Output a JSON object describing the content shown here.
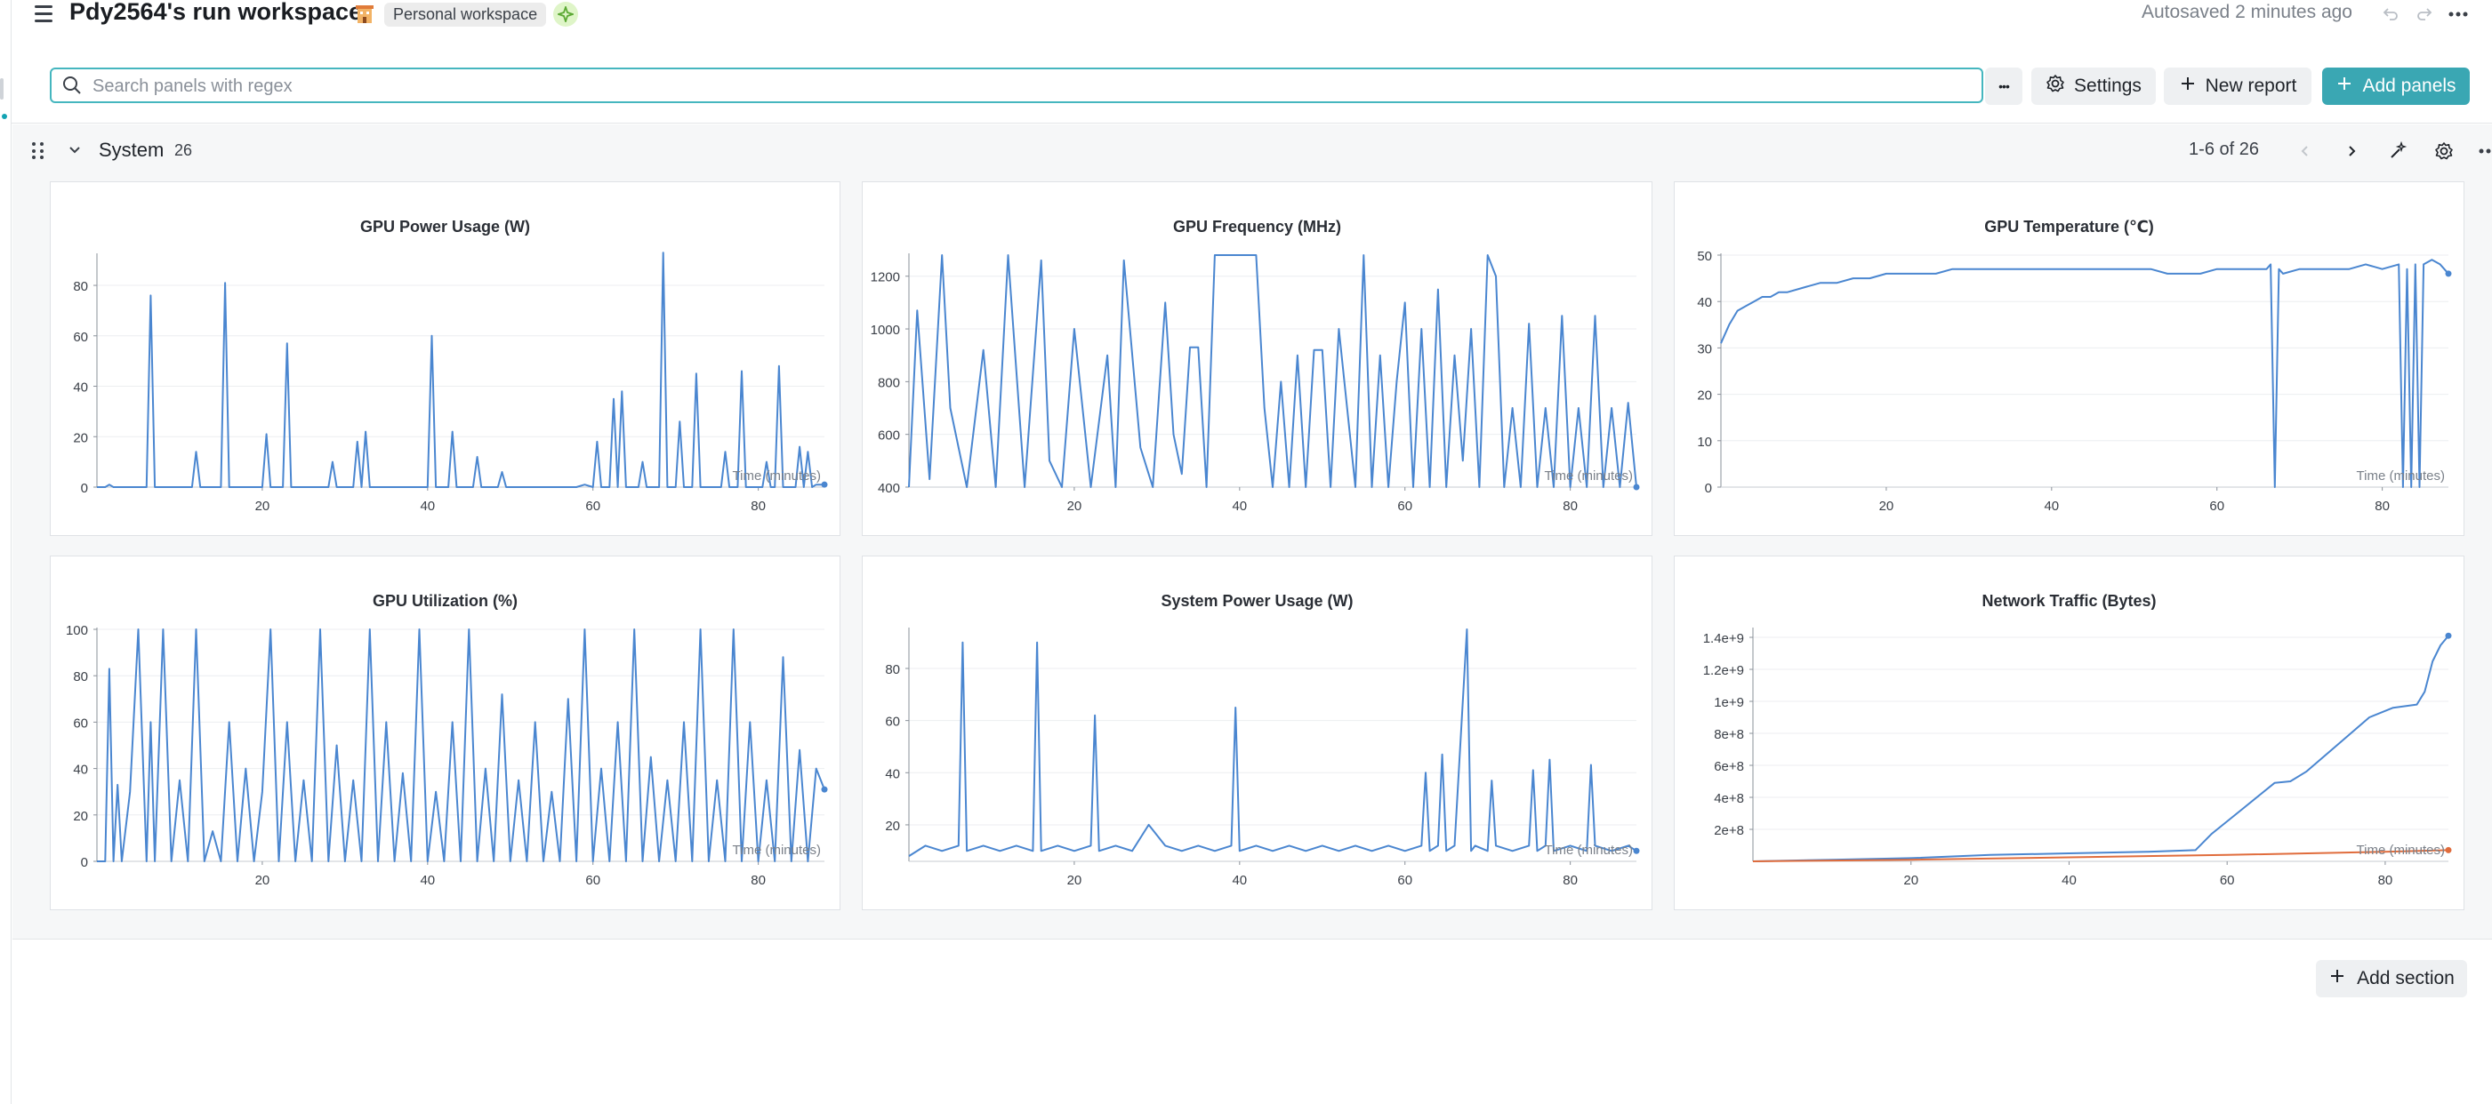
{
  "header": {
    "title": "Pdy2564's run workspace",
    "workspace_badge": "Personal workspace",
    "autosaved": "Autosaved 2 minutes ago"
  },
  "search": {
    "placeholder": "Search panels with regex",
    "value": ""
  },
  "toolbar": {
    "more_label": "•••",
    "settings_label": "Settings",
    "new_report_label": "New report",
    "add_panels_label": "Add panels"
  },
  "section": {
    "title": "System",
    "count": "26",
    "pager": "1-6 of 26"
  },
  "footer": {
    "add_section_label": "Add section"
  },
  "colors": {
    "accent": "#3aa7b3",
    "series_blue": "#4a86d0",
    "series_orange": "#e06c3c"
  },
  "chart_data": [
    {
      "type": "line",
      "title": "GPU Power Usage (W)",
      "xlabel": "Time (minutes)",
      "xlim": [
        0,
        88
      ],
      "ylim": [
        0,
        92
      ],
      "x_ticks": [
        20,
        40,
        60,
        80
      ],
      "y_ticks": [
        "0",
        "20",
        "40",
        "60",
        "80"
      ],
      "series": [
        {
          "color": "#4a86d0",
          "x": [
            0,
            1,
            1.5,
            2,
            6,
            6.5,
            7,
            11.5,
            12,
            12.5,
            15,
            15.5,
            16,
            20,
            20.5,
            21,
            22.5,
            23,
            23.5,
            28,
            28.5,
            29,
            31,
            31.5,
            32,
            32.5,
            33,
            33.5,
            40,
            40.5,
            41,
            42.5,
            43,
            43.5,
            45.5,
            46,
            46.5,
            48.5,
            49,
            49.5,
            58,
            59,
            60,
            60.5,
            61,
            62,
            62.5,
            63,
            63.5,
            64,
            65.5,
            66,
            66.5,
            68,
            68.5,
            69,
            70,
            70.5,
            71,
            72,
            72.5,
            73,
            75.5,
            76,
            76.5,
            77.5,
            78,
            78.5,
            80.5,
            81,
            81.5,
            82,
            82.5,
            83,
            84.5,
            85,
            85.5,
            86,
            86.5,
            87,
            88
          ],
          "values": [
            0,
            0,
            1,
            0,
            0,
            76,
            0,
            0,
            14,
            0,
            0,
            81,
            0,
            0,
            21,
            0,
            0,
            57,
            0,
            0,
            10,
            0,
            0,
            18,
            0,
            22,
            0,
            0,
            0,
            60,
            0,
            0,
            22,
            0,
            0,
            12,
            0,
            0,
            6,
            0,
            0,
            1,
            0,
            18,
            0,
            0,
            35,
            0,
            38,
            0,
            0,
            10,
            0,
            0,
            93,
            0,
            0,
            26,
            0,
            0,
            45,
            0,
            0,
            14,
            0,
            0,
            46,
            0,
            0,
            10,
            0,
            0,
            48,
            0,
            0,
            16,
            0,
            14,
            0,
            1,
            1
          ]
        }
      ]
    },
    {
      "type": "line",
      "title": "GPU Frequency (MHz)",
      "xlabel": "Time (minutes)",
      "xlim": [
        0,
        88
      ],
      "ylim": [
        400,
        1280
      ],
      "x_ticks": [
        20,
        40,
        60,
        80
      ],
      "y_ticks": [
        "400",
        "600",
        "800",
        "1000",
        "1200"
      ],
      "series": [
        {
          "color": "#4a86d0",
          "x": [
            0,
            1,
            2.5,
            4,
            5,
            7,
            9,
            10.5,
            12,
            14,
            16,
            17,
            18.5,
            20,
            22,
            24,
            25,
            26,
            28,
            29.5,
            31,
            32,
            33,
            34,
            35,
            36,
            37,
            38,
            42,
            43,
            44,
            45,
            46,
            47,
            48,
            49,
            50,
            51,
            52,
            54,
            55,
            56,
            57,
            58,
            59,
            60,
            61,
            62,
            63,
            64,
            65,
            66,
            67,
            68,
            69,
            70,
            71,
            72,
            73,
            74,
            75,
            76,
            77,
            78,
            79,
            80,
            81,
            82,
            83,
            84,
            85,
            86,
            87,
            88
          ],
          "values": [
            400,
            1070,
            430,
            1280,
            700,
            400,
            920,
            400,
            1280,
            400,
            1260,
            500,
            400,
            1000,
            400,
            900,
            400,
            1260,
            550,
            400,
            1100,
            600,
            450,
            930,
            930,
            400,
            1280,
            1280,
            1280,
            700,
            400,
            800,
            400,
            900,
            400,
            920,
            920,
            400,
            1000,
            400,
            1280,
            400,
            900,
            400,
            800,
            1100,
            400,
            1000,
            400,
            1150,
            400,
            900,
            500,
            1000,
            400,
            1280,
            1200,
            400,
            700,
            400,
            1020,
            400,
            700,
            400,
            1050,
            400,
            700,
            400,
            1050,
            400,
            700,
            400,
            720,
            400
          ]
        }
      ]
    },
    {
      "type": "line",
      "title": "GPU Temperature (℃)",
      "xlabel": "Time (minutes)",
      "xlim": [
        0,
        88
      ],
      "ylim": [
        0,
        50
      ],
      "x_ticks": [
        20,
        40,
        60,
        80
      ],
      "y_ticks": [
        "0",
        "10",
        "20",
        "30",
        "40",
        "50"
      ],
      "series": [
        {
          "color": "#4a86d0",
          "x": [
            0,
            1,
            2,
            3,
            4,
            5,
            6,
            7,
            8,
            10,
            12,
            14,
            16,
            18,
            20,
            22,
            24,
            26,
            28,
            30,
            32,
            34,
            36,
            38,
            40,
            42,
            44,
            46,
            48,
            50,
            52,
            54,
            56,
            58,
            60,
            62,
            64,
            66,
            66.5,
            67,
            67.5,
            68,
            70,
            72,
            74,
            76,
            78,
            80,
            82,
            82.5,
            83,
            83.5,
            84,
            84.5,
            85,
            86,
            87,
            88
          ],
          "values": [
            31,
            35,
            38,
            39,
            40,
            41,
            41,
            42,
            42,
            43,
            44,
            44,
            45,
            45,
            46,
            46,
            46,
            46,
            47,
            47,
            47,
            47,
            47,
            47,
            47,
            47,
            47,
            47,
            47,
            47,
            47,
            46,
            46,
            46,
            47,
            47,
            47,
            47,
            48,
            0,
            47,
            46,
            47,
            47,
            47,
            47,
            48,
            47,
            48,
            0,
            47,
            0,
            48,
            0,
            48,
            49,
            48,
            46
          ]
        }
      ]
    },
    {
      "type": "line",
      "title": "GPU Utilization (%)",
      "xlabel": "Time (minutes)",
      "xlim": [
        0,
        88
      ],
      "ylim": [
        0,
        100
      ],
      "x_ticks": [
        20,
        40,
        60,
        80
      ],
      "y_ticks": [
        "0",
        "20",
        "40",
        "60",
        "80",
        "100"
      ],
      "series": [
        {
          "color": "#4a86d0",
          "x": [
            0,
            1,
            1.5,
            2,
            2.5,
            3,
            4,
            5,
            6,
            6.5,
            7,
            8,
            9,
            10,
            11,
            12,
            13,
            14,
            15,
            16,
            17,
            18,
            19,
            20,
            21,
            22,
            23,
            24,
            25,
            26,
            27,
            28,
            29,
            30,
            31,
            32,
            33,
            34,
            35,
            36,
            37,
            38,
            39,
            40,
            41,
            42,
            43,
            44,
            45,
            46,
            47,
            48,
            49,
            50,
            51,
            52,
            53,
            54,
            55,
            56,
            57,
            58,
            59,
            60,
            61,
            62,
            63,
            64,
            65,
            66,
            67,
            68,
            69,
            70,
            71,
            72,
            73,
            74,
            75,
            76,
            77,
            78,
            79,
            80,
            81,
            82,
            83,
            84,
            85,
            86,
            87,
            88
          ],
          "values": [
            0,
            0,
            83,
            0,
            33,
            0,
            30,
            100,
            0,
            60,
            0,
            100,
            0,
            35,
            0,
            100,
            0,
            13,
            0,
            60,
            0,
            40,
            0,
            30,
            100,
            0,
            60,
            0,
            35,
            0,
            100,
            0,
            50,
            0,
            35,
            0,
            100,
            0,
            60,
            0,
            38,
            0,
            100,
            0,
            30,
            0,
            60,
            0,
            100,
            0,
            40,
            0,
            72,
            0,
            35,
            0,
            60,
            0,
            30,
            0,
            70,
            0,
            100,
            0,
            40,
            0,
            60,
            0,
            100,
            0,
            45,
            0,
            35,
            0,
            60,
            0,
            100,
            0,
            35,
            0,
            100,
            0,
            60,
            0,
            35,
            0,
            88,
            0,
            48,
            0,
            40,
            31
          ]
        }
      ]
    },
    {
      "type": "line",
      "title": "System Power Usage (W)",
      "xlabel": "Time (minutes)",
      "xlim": [
        0,
        88
      ],
      "ylim": [
        6,
        95
      ],
      "x_ticks": [
        20,
        40,
        60,
        80
      ],
      "y_ticks": [
        "20",
        "40",
        "60",
        "80"
      ],
      "series": [
        {
          "color": "#4a86d0",
          "x": [
            0,
            2,
            4,
            6,
            6.5,
            7,
            9,
            11,
            13,
            15,
            15.5,
            16,
            18,
            20,
            22,
            22.5,
            23,
            25,
            27,
            29,
            31,
            33,
            35,
            37,
            39,
            39.5,
            40,
            42,
            44,
            46,
            48,
            50,
            52,
            54,
            56,
            58,
            60,
            62,
            62.5,
            63,
            64,
            64.5,
            65,
            66,
            67.5,
            68,
            68.5,
            70,
            70.5,
            71,
            73,
            75,
            75.5,
            76,
            77,
            77.5,
            78,
            80,
            82,
            82.5,
            83,
            85,
            87,
            88
          ],
          "values": [
            8,
            12,
            10,
            12,
            90,
            10,
            12,
            10,
            12,
            10,
            90,
            10,
            12,
            10,
            12,
            62,
            10,
            12,
            10,
            20,
            12,
            10,
            12,
            10,
            12,
            65,
            10,
            12,
            10,
            12,
            10,
            12,
            10,
            12,
            10,
            12,
            10,
            12,
            40,
            10,
            12,
            47,
            10,
            12,
            95,
            10,
            12,
            10,
            37,
            12,
            10,
            12,
            41,
            10,
            12,
            45,
            10,
            12,
            10,
            43,
            12,
            10,
            12,
            10
          ]
        }
      ]
    },
    {
      "type": "line",
      "title": "Network Traffic (Bytes)",
      "xlabel": "Time (minutes)",
      "xlim": [
        0,
        88
      ],
      "ylim": [
        0,
        1450000000
      ],
      "x_ticks": [
        20,
        40,
        60,
        80
      ],
      "y_ticks": [
        "2e+8",
        "4e+8",
        "6e+8",
        "8e+8",
        "1e+9",
        "1.2e+9",
        "1.4e+9"
      ],
      "series": [
        {
          "color": "#4a86d0",
          "x": [
            0,
            10,
            20,
            30,
            40,
            50,
            56,
            57,
            58,
            62,
            66,
            68,
            70,
            74,
            78,
            81,
            84,
            85,
            86,
            87,
            88
          ],
          "values": [
            0,
            10000000,
            20000000,
            40000000,
            50000000,
            60000000,
            70000000,
            120000000,
            170000000,
            330000000,
            490000000,
            500000000,
            560000000,
            730000000,
            900000000,
            960000000,
            980000000,
            1060000000,
            1250000000,
            1350000000,
            1410000000
          ]
        },
        {
          "color": "#e06c3c",
          "x": [
            0,
            20,
            40,
            60,
            80,
            88
          ],
          "values": [
            0,
            10000000,
            25000000,
            40000000,
            60000000,
            70000000
          ]
        }
      ]
    }
  ]
}
